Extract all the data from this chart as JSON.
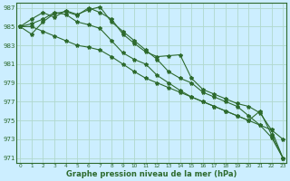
{
  "xlabel": "Graphe pression niveau de la mer (hPa)",
  "bg_color": "#cceeff",
  "grid_color": "#b0d8cc",
  "line_color": "#2d6a2d",
  "ylim": [
    970.5,
    987.5
  ],
  "yticks": [
    971,
    973,
    975,
    977,
    979,
    981,
    983,
    985,
    987
  ],
  "xlim": [
    -0.3,
    23.3
  ],
  "x_ticks": [
    0,
    1,
    2,
    3,
    4,
    5,
    6,
    7,
    8,
    9,
    10,
    11,
    12,
    13,
    14,
    15,
    16,
    17,
    18,
    19,
    20,
    21,
    22,
    23
  ],
  "series": [
    [
      985.0,
      984.2,
      985.5,
      986.4,
      986.6,
      986.2,
      987.0,
      986.5,
      985.8,
      984.2,
      983.2,
      982.3,
      981.8,
      981.9,
      982.0,
      979.5,
      978.3,
      977.8,
      977.3,
      976.8,
      976.5,
      975.8,
      974.0,
      973.0
    ],
    [
      985.0,
      985.8,
      986.5,
      986.0,
      986.7,
      986.3,
      986.8,
      987.1,
      985.5,
      984.5,
      983.5,
      982.5,
      981.5,
      980.2,
      979.5,
      979.0,
      978.0,
      977.5,
      977.0,
      976.5,
      975.5,
      974.5,
      973.2,
      971.0
    ],
    [
      985.0,
      985.3,
      985.8,
      986.5,
      986.3,
      985.5,
      985.2,
      984.8,
      983.5,
      982.2,
      981.5,
      981.0,
      979.8,
      979.0,
      978.2,
      977.5,
      977.0,
      976.5,
      976.0,
      975.5,
      975.0,
      976.0,
      973.5,
      971.0
    ],
    [
      985.0,
      985.0,
      984.5,
      984.0,
      983.5,
      983.0,
      982.8,
      982.5,
      981.8,
      981.0,
      980.2,
      979.5,
      979.0,
      978.5,
      978.0,
      977.5,
      977.0,
      976.5,
      976.0,
      975.5,
      975.0,
      974.5,
      974.0,
      971.0
    ]
  ]
}
